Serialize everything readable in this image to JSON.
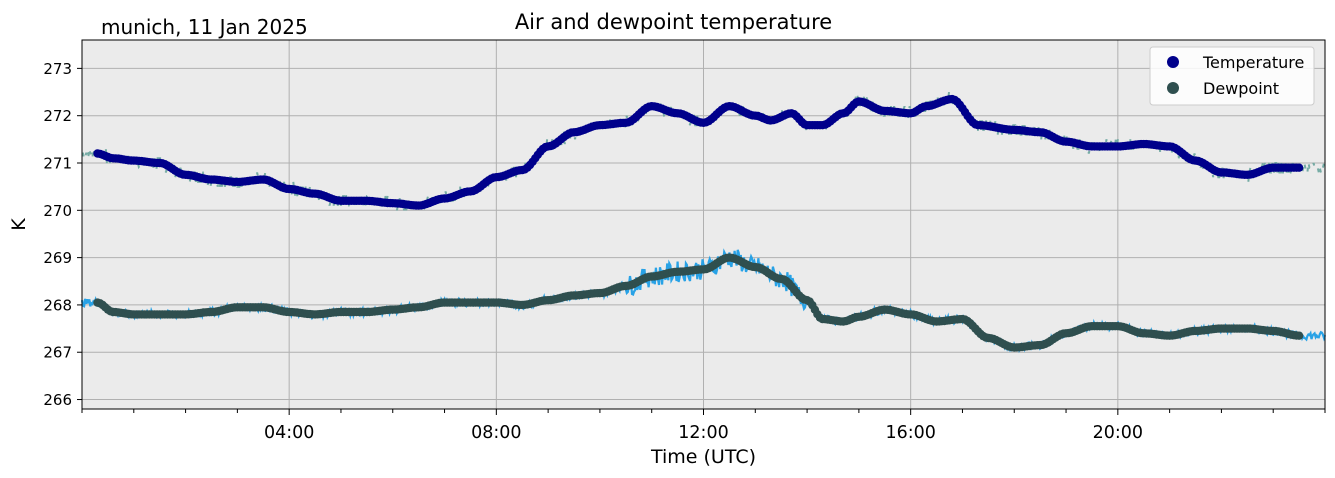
{
  "chart_data": {
    "type": "line",
    "title": "Air and dewpoint temperature",
    "subtitle": "munich, 11 Jan 2025",
    "xlabel": "Time (UTC)",
    "ylabel": "K",
    "xlim": [
      0,
      24
    ],
    "ylim": [
      265.8,
      273.6
    ],
    "yticks": [
      266,
      267,
      268,
      269,
      270,
      271,
      272,
      273
    ],
    "xticks": [
      "04:00",
      "08:00",
      "12:00",
      "16:00",
      "20:00"
    ],
    "grid": true,
    "legend": "top-right",
    "plot_background": "#ebebeb",
    "series": [
      {
        "name": "Temperature",
        "marker_color": "#00008b",
        "raw_color": "#6fa8a0",
        "x": [
          0.3,
          0.6,
          1.0,
          1.5,
          2.0,
          2.5,
          3.0,
          3.5,
          4.0,
          4.5,
          5.0,
          5.5,
          6.0,
          6.5,
          7.0,
          7.5,
          8.0,
          8.5,
          9.0,
          9.5,
          10.0,
          10.5,
          11.0,
          11.5,
          12.0,
          12.5,
          13.0,
          13.3,
          13.7,
          14.0,
          14.3,
          14.7,
          15.0,
          15.5,
          16.0,
          16.3,
          16.8,
          17.3,
          18.0,
          18.5,
          19.0,
          19.5,
          20.0,
          20.5,
          21.0,
          21.5,
          22.0,
          22.5,
          23.0,
          23.5
        ],
        "y": [
          271.2,
          271.1,
          271.05,
          271.0,
          270.75,
          270.65,
          270.6,
          270.65,
          270.45,
          270.35,
          270.2,
          270.2,
          270.15,
          270.1,
          270.25,
          270.4,
          270.7,
          270.85,
          271.35,
          271.65,
          271.8,
          271.85,
          272.2,
          272.05,
          271.85,
          272.2,
          272.0,
          271.9,
          272.05,
          271.8,
          271.8,
          272.05,
          272.3,
          272.1,
          272.05,
          272.2,
          272.35,
          271.8,
          271.7,
          271.65,
          271.45,
          271.35,
          271.35,
          271.4,
          271.35,
          271.05,
          270.8,
          270.75,
          270.9,
          270.9
        ]
      },
      {
        "name": "Dewpoint",
        "marker_color": "#2f4f4f",
        "raw_color": "#1e9ee6",
        "x": [
          0.3,
          0.6,
          1.0,
          1.5,
          2.0,
          2.5,
          3.0,
          3.5,
          4.0,
          4.5,
          5.0,
          5.5,
          6.0,
          6.5,
          7.0,
          7.5,
          8.0,
          8.5,
          9.0,
          9.5,
          10.0,
          10.5,
          11.0,
          11.5,
          12.0,
          12.5,
          13.0,
          13.5,
          14.0,
          14.3,
          14.7,
          15.0,
          15.5,
          16.0,
          16.5,
          17.0,
          17.5,
          18.0,
          18.5,
          19.0,
          19.5,
          20.0,
          20.5,
          21.0,
          21.5,
          22.0,
          22.5,
          23.0,
          23.5
        ],
        "y": [
          268.05,
          267.85,
          267.8,
          267.8,
          267.8,
          267.85,
          267.95,
          267.95,
          267.85,
          267.8,
          267.85,
          267.85,
          267.9,
          267.95,
          268.05,
          268.05,
          268.05,
          268.0,
          268.1,
          268.2,
          268.25,
          268.4,
          268.6,
          268.7,
          268.75,
          269.0,
          268.8,
          268.55,
          268.1,
          267.7,
          267.65,
          267.75,
          267.9,
          267.8,
          267.65,
          267.7,
          267.3,
          267.1,
          267.15,
          267.4,
          267.55,
          267.55,
          267.4,
          267.35,
          267.45,
          267.5,
          267.5,
          267.45,
          267.35
        ]
      }
    ]
  }
}
